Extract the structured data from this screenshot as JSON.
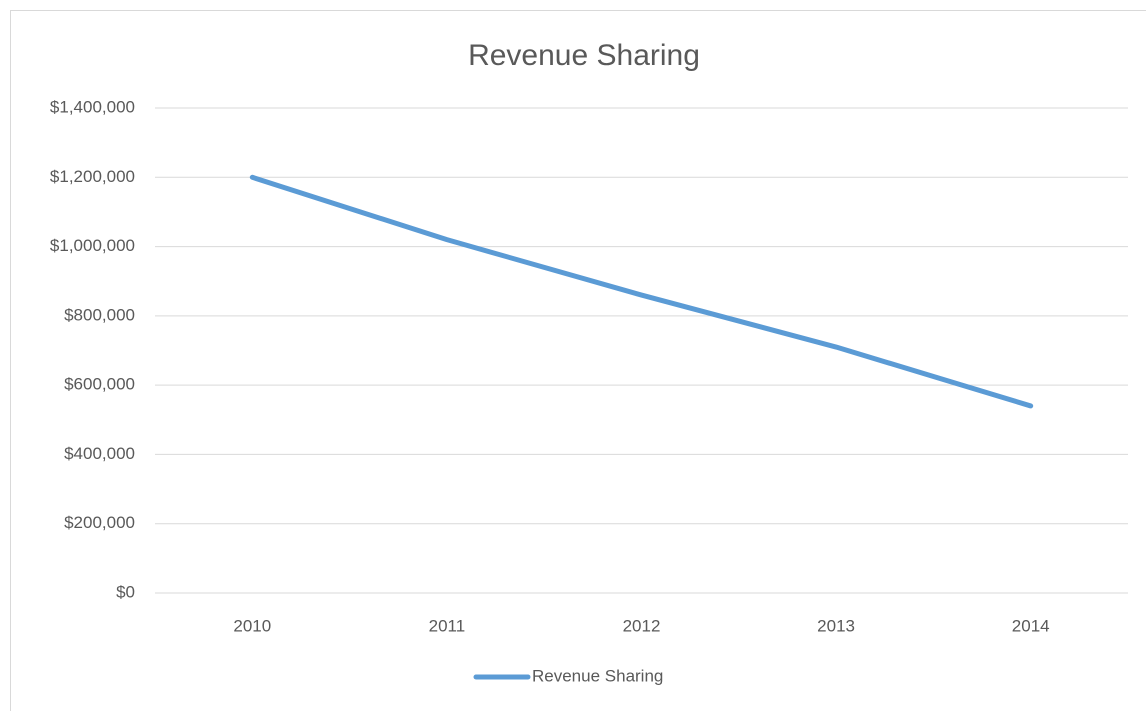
{
  "chart_data": {
    "type": "line",
    "title": "Revenue Sharing",
    "categories": [
      "2010",
      "2011",
      "2012",
      "2013",
      "2014"
    ],
    "series": [
      {
        "name": "Revenue Sharing",
        "color": "#5b9bd5",
        "values": [
          1200000,
          1020000,
          860000,
          710000,
          540000
        ]
      }
    ],
    "ylim": [
      0,
      1400000
    ],
    "yticks": [
      {
        "value": 0,
        "label": "$0"
      },
      {
        "value": 200000,
        "label": "$200,000"
      },
      {
        "value": 400000,
        "label": "$400,000"
      },
      {
        "value": 600000,
        "label": "$600,000"
      },
      {
        "value": 800000,
        "label": "$800,000"
      },
      {
        "value": 1000000,
        "label": "$1,000,000"
      },
      {
        "value": 1200000,
        "label": "$1,200,000"
      },
      {
        "value": 1400000,
        "label": "$1,400,000"
      }
    ],
    "grid": true,
    "legend": "bottom"
  }
}
